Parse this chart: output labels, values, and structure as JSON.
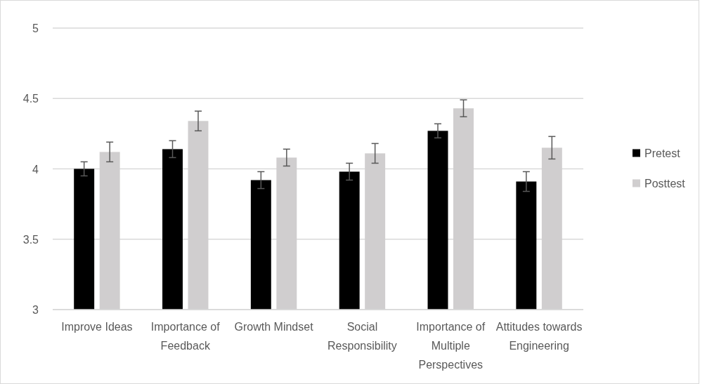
{
  "chart_data": {
    "type": "bar",
    "categories": [
      "Improve Ideas",
      "Importance of Feedback",
      "Growth Mindset",
      "Social Responsibility",
      "Importance of Multiple Perspectives",
      "Attitudes towards Engineering"
    ],
    "series": [
      {
        "name": "Pretest",
        "color": "#000000",
        "values": [
          4.0,
          4.14,
          3.92,
          3.98,
          4.27,
          3.91
        ],
        "errors": [
          0.05,
          0.06,
          0.06,
          0.06,
          0.05,
          0.07
        ]
      },
      {
        "name": "Posttest",
        "color": "#d0cecf",
        "values": [
          4.12,
          4.34,
          4.08,
          4.11,
          4.43,
          4.15
        ],
        "errors": [
          0.07,
          0.07,
          0.06,
          0.07,
          0.06,
          0.08
        ]
      }
    ],
    "ylim": [
      3,
      5
    ],
    "yticks": [
      3,
      3.5,
      4,
      4.5,
      5
    ],
    "grid": "y",
    "legend": "right"
  }
}
